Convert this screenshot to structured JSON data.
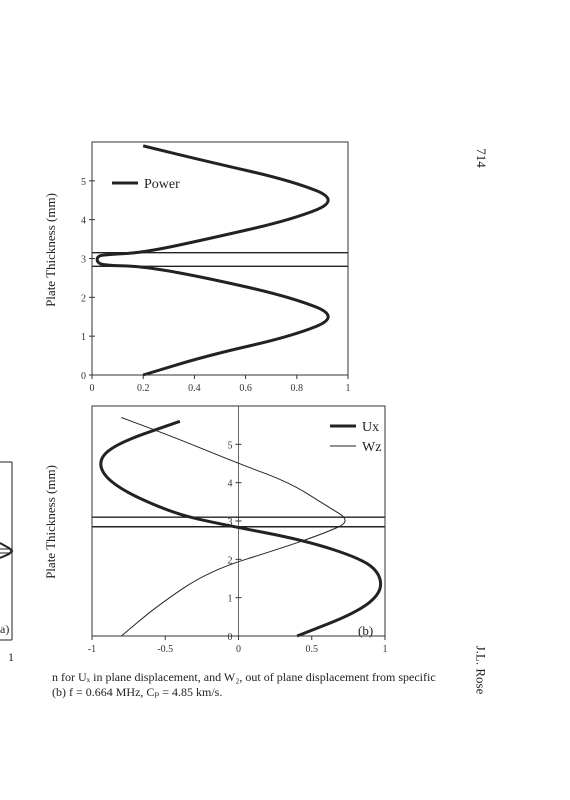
{
  "page": {
    "page_number": "714",
    "running_head": "J.L. Rose",
    "caption_line1": "n for Uₓ in plane displacement, and W₂, out of plane displacement from specific",
    "caption_line2": "(b) f = 0.664 MHz, Cₚ = 4.85 km/s.",
    "partial_panel_label": "a)",
    "partial_axis_tick": "1"
  },
  "chart_data": [
    {
      "type": "line",
      "orientation": "y-vertical",
      "ylabel": "Plate Thickness (mm)",
      "xlim": [
        0,
        1
      ],
      "ylim": [
        0,
        6
      ],
      "x_ticks": [
        "0",
        "0.2",
        "0.4",
        "0.6",
        "0.8",
        "1"
      ],
      "y_ticks": [
        "0",
        "1",
        "2",
        "3",
        "4",
        "5"
      ],
      "legend_placement": "top-left",
      "horizontal_lines_y": [
        2.8,
        3.15
      ],
      "series": [
        {
          "name": "Power",
          "color": "#222222",
          "points": [
            [
              0.2,
              0
            ],
            [
              0.45,
              0.5
            ],
            [
              0.78,
              1
            ],
            [
              0.97,
              1.5
            ],
            [
              0.78,
              2
            ],
            [
              0.45,
              2.5
            ],
            [
              0.2,
              2.8
            ],
            [
              0.05,
              2.82
            ],
            [
              0.02,
              2.9
            ],
            [
              0.02,
              3.05
            ],
            [
              0.05,
              3.1
            ],
            [
              0.2,
              3.15
            ],
            [
              0.45,
              3.5
            ],
            [
              0.78,
              4
            ],
            [
              0.97,
              4.5
            ],
            [
              0.78,
              5
            ],
            [
              0.45,
              5.5
            ],
            [
              0.2,
              5.9
            ]
          ]
        }
      ]
    },
    {
      "type": "line",
      "orientation": "y-vertical",
      "ylabel": "Plate Thickness (mm)",
      "panel_label": "(b)",
      "xlim": [
        -1,
        1
      ],
      "ylim": [
        0,
        6
      ],
      "x_ticks": [
        "-1",
        "-0.5",
        "0",
        "0.5",
        "1"
      ],
      "y_ticks": [
        "0",
        "1",
        "2",
        "3",
        "4",
        "5"
      ],
      "legend_placement": "top-right",
      "horizontal_lines_y": [
        2.85,
        3.1
      ],
      "series": [
        {
          "name": "Ux",
          "color": "#222222",
          "points": [
            [
              0.4,
              0
            ],
            [
              0.8,
              0.6
            ],
            [
              0.97,
              1.1
            ],
            [
              0.97,
              1.6
            ],
            [
              0.85,
              2
            ],
            [
              0.45,
              2.5
            ],
            [
              -0.1,
              2.9
            ],
            [
              -0.45,
              3.2
            ],
            [
              -0.85,
              3.9
            ],
            [
              -0.97,
              4.5
            ],
            [
              -0.85,
              5
            ],
            [
              -0.4,
              5.6
            ]
          ]
        },
        {
          "name": "Wz",
          "color": "#222222",
          "points": [
            [
              -0.8,
              0
            ],
            [
              -0.55,
              0.8
            ],
            [
              -0.2,
              1.7
            ],
            [
              0.3,
              2.3
            ],
            [
              0.6,
              2.7
            ],
            [
              0.77,
              3
            ],
            [
              0.6,
              3.4
            ],
            [
              0.35,
              4
            ],
            [
              0,
              4.5
            ],
            [
              -0.45,
              5.2
            ],
            [
              -0.8,
              5.7
            ]
          ]
        }
      ]
    }
  ]
}
